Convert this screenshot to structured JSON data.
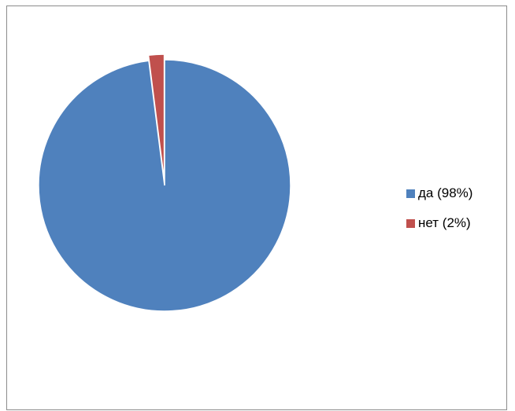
{
  "chart_data": {
    "type": "pie",
    "categories": [
      "да (98%)",
      "нет (2%)"
    ],
    "values": [
      98,
      2
    ],
    "colors": [
      "#4f81bd",
      "#c0504d"
    ],
    "exploded": [
      false,
      true
    ],
    "legend_position": "right",
    "title": ""
  }
}
